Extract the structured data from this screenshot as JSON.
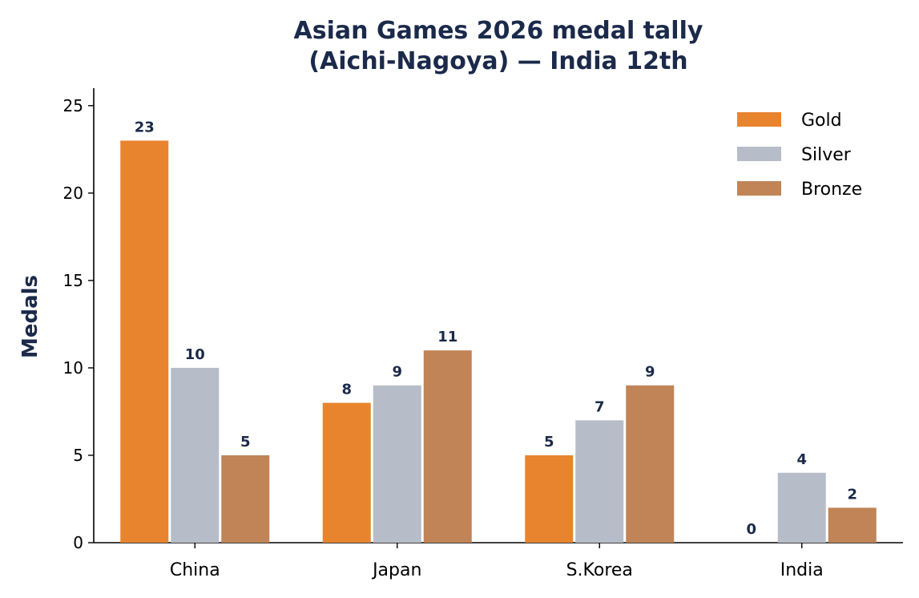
{
  "chart_data": {
    "type": "bar",
    "title_lines": [
      "Asian Games 2026 medal tally",
      "(Aichi-Nagoya) — India 12th"
    ],
    "xlabel": "",
    "ylabel": "Medals",
    "categories": [
      "China",
      "Japan",
      "S.Korea",
      "India"
    ],
    "series": [
      {
        "name": "Gold",
        "values": [
          23,
          8,
          5,
          0
        ],
        "color": "#E8842E"
      },
      {
        "name": "Silver",
        "values": [
          10,
          9,
          7,
          4
        ],
        "color": "#B7BDC8"
      },
      {
        "name": "Bronze",
        "values": [
          5,
          11,
          9,
          2
        ],
        "color": "#C08457"
      }
    ],
    "ylim": [
      0,
      26
    ],
    "yticks": [
      0,
      5,
      10,
      15,
      20,
      25
    ],
    "legend_position": "top-right",
    "grid": false,
    "title_color": "#1B2A4A",
    "label_color": "#1B2A4A"
  }
}
